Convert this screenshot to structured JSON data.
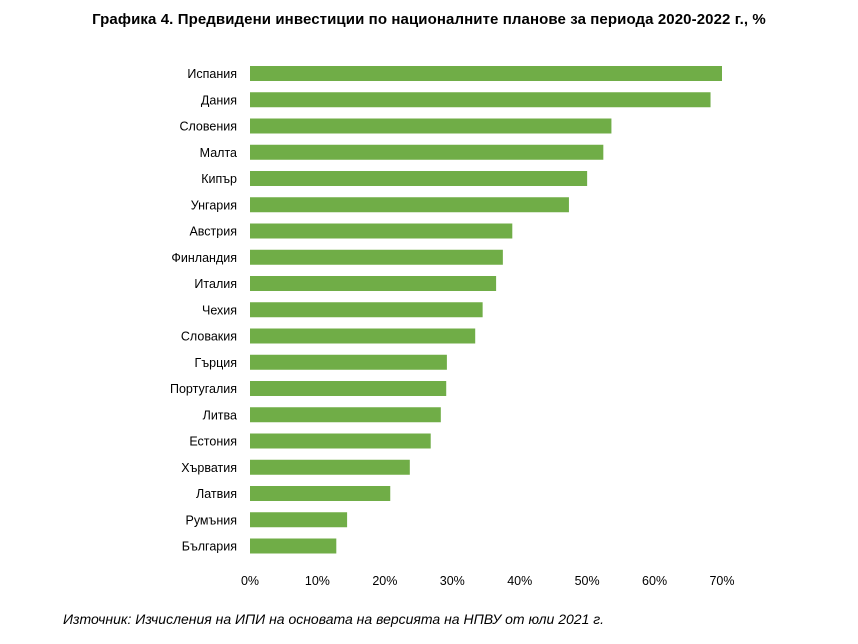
{
  "chart_data": {
    "type": "bar",
    "orientation": "horizontal",
    "title": "Графика 4. Предвидени инвестиции по националните планове за периода 2020-2022 г., %",
    "categories": [
      "Испания",
      "Дания",
      "Словения",
      "Малта",
      "Кипър",
      "Унгария",
      "Австрия",
      "Финландия",
      "Италия",
      "Чехия",
      "Словакия",
      "Гърция",
      "Португалия",
      "Литва",
      "Естония",
      "Хърватия",
      "Латвия",
      "Румъния",
      "България"
    ],
    "values": [
      70.0,
      68.3,
      53.6,
      52.4,
      50.0,
      47.3,
      38.9,
      37.5,
      36.5,
      34.5,
      33.4,
      29.2,
      29.1,
      28.3,
      26.8,
      23.7,
      20.8,
      14.4,
      12.8
    ],
    "xlim": [
      0,
      70
    ],
    "xticks": [
      "0%",
      "10%",
      "20%",
      "30%",
      "40%",
      "50%",
      "60%",
      "70%"
    ],
    "xlabel": "",
    "ylabel": "",
    "grid": false,
    "legend": "none",
    "bar_color": "#70ad47"
  },
  "source": "Източник: Изчисления на ИПИ на основата на версията на НПВУ от юли 2021 г."
}
